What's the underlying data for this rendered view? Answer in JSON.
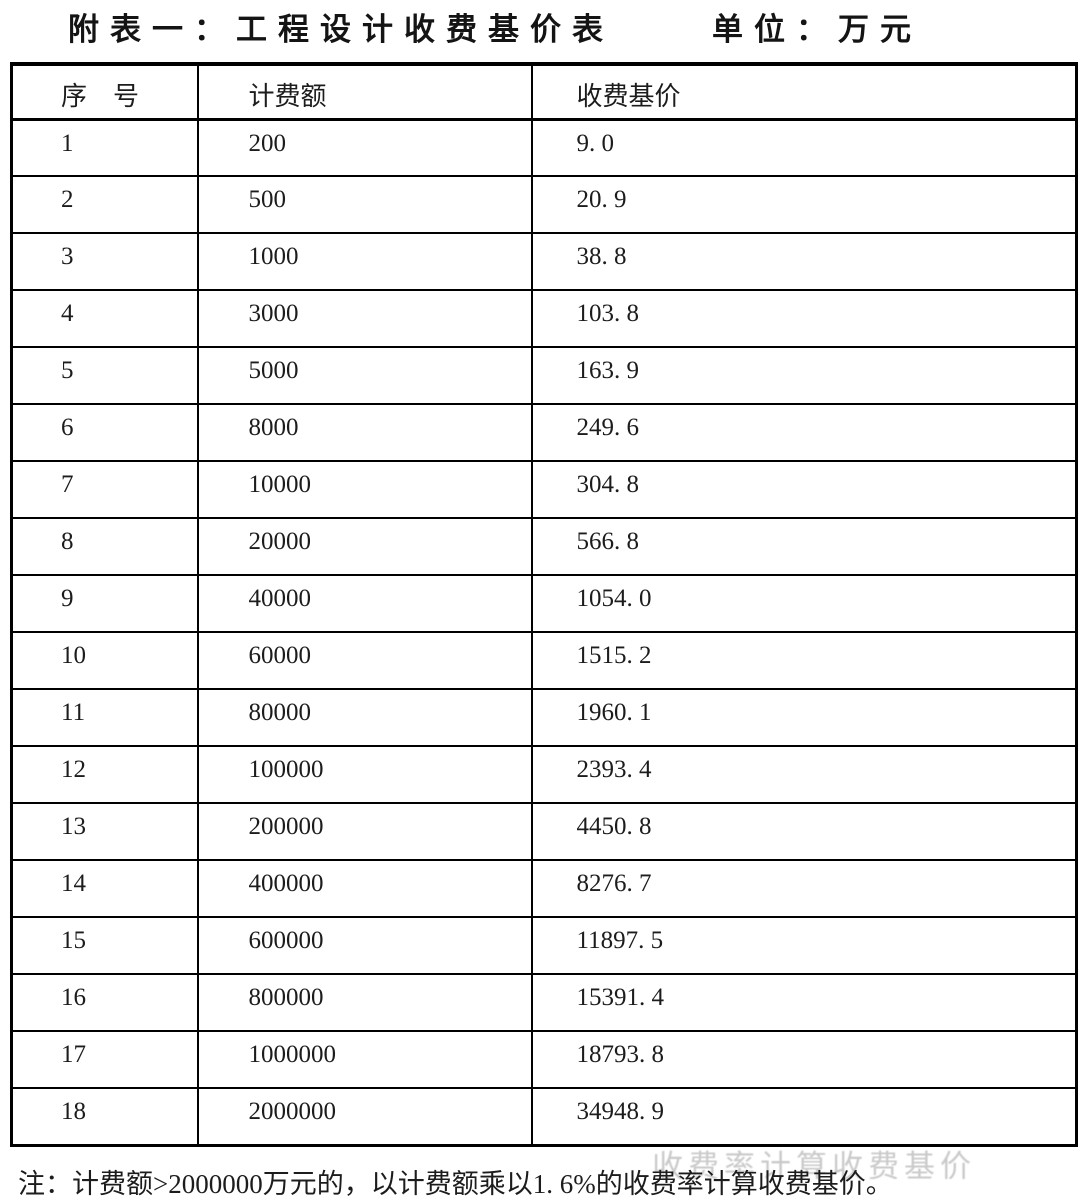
{
  "title": {
    "main": "附表一：工程设计收费基价表",
    "unit": "单位：万元"
  },
  "table": {
    "headers": [
      "序　号",
      "计费额",
      "收费基价"
    ],
    "rows": [
      {
        "no": "1",
        "amount": "200",
        "price": "9. 0"
      },
      {
        "no": "2",
        "amount": "500",
        "price": "20. 9"
      },
      {
        "no": "3",
        "amount": "1000",
        "price": "38. 8"
      },
      {
        "no": "4",
        "amount": "3000",
        "price": "103. 8"
      },
      {
        "no": "5",
        "amount": "5000",
        "price": "163. 9"
      },
      {
        "no": "6",
        "amount": "8000",
        "price": "249. 6"
      },
      {
        "no": "7",
        "amount": "10000",
        "price": "304. 8"
      },
      {
        "no": "8",
        "amount": "20000",
        "price": "566. 8"
      },
      {
        "no": "9",
        "amount": "40000",
        "price": "1054. 0"
      },
      {
        "no": "10",
        "amount": "60000",
        "price": "1515. 2"
      },
      {
        "no": "11",
        "amount": "80000",
        "price": "1960. 1"
      },
      {
        "no": "12",
        "amount": "100000",
        "price": "2393. 4"
      },
      {
        "no": "13",
        "amount": "200000",
        "price": "4450. 8"
      },
      {
        "no": "14",
        "amount": "400000",
        "price": "8276. 7"
      },
      {
        "no": "15",
        "amount": "600000",
        "price": "11897. 5"
      },
      {
        "no": "16",
        "amount": "800000",
        "price": "15391. 4"
      },
      {
        "no": "17",
        "amount": "1000000",
        "price": "18793. 8"
      },
      {
        "no": "18",
        "amount": "2000000",
        "price": "34948. 9"
      }
    ]
  },
  "note": "注：计费额>2000000万元的，以计费额乘以1. 6%的收费率计算收费基价。",
  "scan_artifact": {
    "text": "收费率计算收费基价"
  },
  "colors": {
    "background": "#ffffff",
    "border": "#000000",
    "text": "#1c1c1c"
  }
}
